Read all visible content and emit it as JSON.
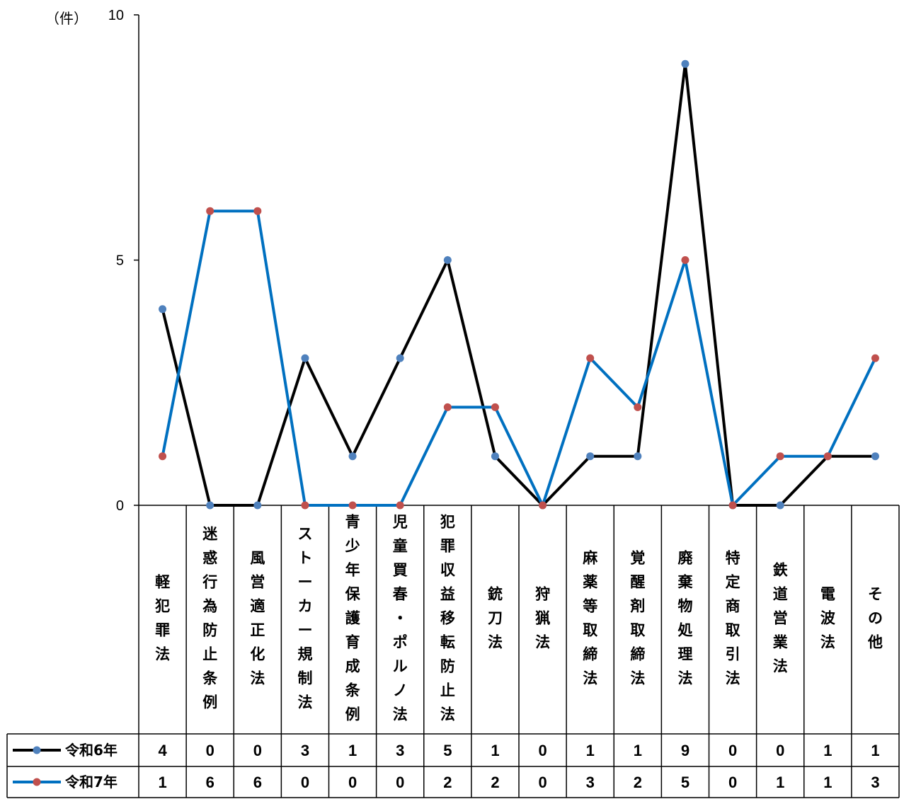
{
  "chart_data": {
    "type": "line",
    "unit_label": "（件）",
    "yticks": [
      "0",
      "5",
      "10"
    ],
    "ylim": [
      0,
      10
    ],
    "grid": false,
    "categories": [
      "軽犯罪法",
      "迷惑行為防止条例",
      "風営適正化法",
      "ストーカー規制法",
      "青少年保護育成条例",
      "児童買春・ポルノ法",
      "犯罪収益移転防止法",
      "銃刀法",
      "狩猟法",
      "麻薬等取締法",
      "覚醒剤取締法",
      "廃棄物処理法",
      "特定商取引法",
      "鉄道営業法",
      "電波法",
      "その他"
    ],
    "series": [
      {
        "name": "令和6年",
        "line_color": "#000000",
        "marker_color": "#4f81bd",
        "values": [
          4,
          0,
          0,
          3,
          1,
          3,
          5,
          1,
          0,
          1,
          1,
          9,
          0,
          0,
          1,
          1
        ]
      },
      {
        "name": "令和7年",
        "line_color": "#0070c0",
        "marker_color": "#c0504d",
        "values": [
          1,
          6,
          6,
          0,
          0,
          0,
          2,
          2,
          0,
          3,
          2,
          5,
          0,
          1,
          1,
          3
        ]
      }
    ]
  }
}
